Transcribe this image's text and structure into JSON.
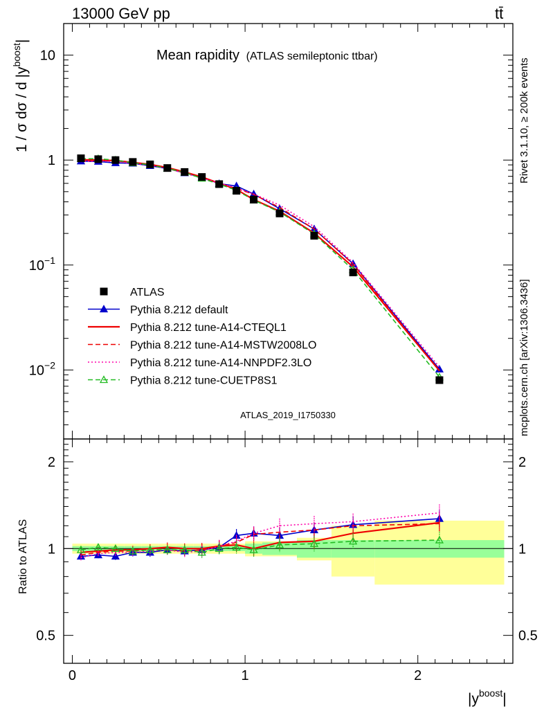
{
  "header": {
    "energy_label": "13000 GeV pp",
    "process_label": "tt̄"
  },
  "side_labels": {
    "rivet": "Rivet 3.1.10, ≥ 200k events",
    "mcplots": "mcplots.cern.ch [arXiv:1306.3436]"
  },
  "chart_data": {
    "type": "line",
    "title": "Mean rapidity",
    "subtitle": "(ATLAS semileptonic ttbar)",
    "analysis_id": "ATLAS_2019_I1750330",
    "xlabel": "|y",
    "xlabel_sup": "boost",
    "xlabel_end": "|",
    "ylabel": "1 / σ dσ / d |y",
    "ylabel_sup": "boost",
    "ylabel_end": "|",
    "ratio_ylabel": "Ratio to ATLAS",
    "xlim": [
      -0.05,
      2.55
    ],
    "ylim": [
      0.0022,
      20
    ],
    "ratio_ylim": [
      0.4,
      2.4
    ],
    "x_ticks": [
      {
        "value": 0,
        "label": "0"
      },
      {
        "value": 1,
        "label": "1"
      },
      {
        "value": 2,
        "label": "2"
      }
    ],
    "y_ticks": [
      {
        "value": 0.01,
        "base": "10",
        "exp": "−2"
      },
      {
        "value": 0.1,
        "base": "10",
        "exp": "−1"
      },
      {
        "value": 1,
        "base": "1",
        "exp": ""
      },
      {
        "value": 10,
        "base": "10",
        "exp": ""
      }
    ],
    "ratio_ticks": [
      {
        "value": 0.5,
        "label": "0.5"
      },
      {
        "value": 1,
        "label": "1"
      },
      {
        "value": 2,
        "label": "2"
      }
    ],
    "bins": [
      [
        0,
        0.1
      ],
      [
        0.1,
        0.2
      ],
      [
        0.2,
        0.3
      ],
      [
        0.3,
        0.4
      ],
      [
        0.4,
        0.5
      ],
      [
        0.5,
        0.6
      ],
      [
        0.6,
        0.7
      ],
      [
        0.7,
        0.8
      ],
      [
        0.8,
        0.9
      ],
      [
        0.9,
        1.0
      ],
      [
        1.0,
        1.1
      ],
      [
        1.1,
        1.3
      ],
      [
        1.3,
        1.5
      ],
      [
        1.5,
        1.75
      ],
      [
        1.75,
        2.5
      ]
    ],
    "x": [
      0.05,
      0.15,
      0.25,
      0.35,
      0.45,
      0.55,
      0.65,
      0.75,
      0.85,
      0.95,
      1.05,
      1.2,
      1.4,
      1.625,
      2.125
    ],
    "data_values": [
      1.04,
      1.02,
      1.0,
      0.96,
      0.91,
      0.84,
      0.77,
      0.69,
      0.59,
      0.51,
      0.42,
      0.31,
      0.19,
      0.085,
      0.008
    ],
    "uncertainty_bands": {
      "stat": [
        0.02,
        0.02,
        0.02,
        0.02,
        0.02,
        0.02,
        0.02,
        0.02,
        0.02,
        0.02,
        0.04,
        0.05,
        0.07,
        0.07,
        0.07
      ],
      "total": [
        0.04,
        0.04,
        0.04,
        0.04,
        0.04,
        0.04,
        0.04,
        0.04,
        0.04,
        0.04,
        0.06,
        0.06,
        0.09,
        0.2,
        0.25
      ]
    },
    "series": [
      {
        "name": "ATLAS",
        "color": "#000000",
        "style": "points-square"
      },
      {
        "name": "Pythia 8.212 default",
        "color": "#0000cc",
        "style": "solid",
        "marker": "triangle-filled",
        "ratio": [
          0.94,
          0.95,
          0.94,
          0.97,
          0.97,
          0.99,
          0.98,
          0.99,
          1.01,
          1.11,
          1.13,
          1.11,
          1.16,
          1.21,
          1.27
        ]
      },
      {
        "name": "Pythia 8.212 tune-A14-CTEQL1",
        "color": "#ee0000",
        "style": "solid",
        "ratio": [
          0.97,
          0.98,
          0.99,
          0.99,
          1.0,
          1.01,
          1.0,
          1.0,
          1.02,
          1.03,
          1.0,
          1.05,
          1.06,
          1.13,
          1.23
        ]
      },
      {
        "name": "Pythia 8.212 tune-A14-MSTW2008LO",
        "color": "#ee0000",
        "style": "dashed",
        "ratio": [
          0.95,
          0.97,
          0.98,
          0.98,
          0.99,
          0.99,
          0.98,
          0.99,
          1.02,
          1.05,
          1.12,
          1.14,
          1.16,
          1.2,
          1.22
        ]
      },
      {
        "name": "Pythia 8.212 tune-A14-NNPDF2.3LO",
        "color": "#ff00aa",
        "style": "dotted",
        "ratio": [
          0.93,
          0.96,
          0.97,
          0.97,
          0.98,
          0.99,
          0.97,
          0.98,
          1.02,
          1.06,
          1.13,
          1.2,
          1.22,
          1.24,
          1.33
        ]
      },
      {
        "name": "Pythia 8.212 tune-CUETP8S1",
        "color": "#22bb22",
        "style": "dashed",
        "marker": "triangle-open",
        "ratio": [
          0.99,
          1.01,
          1.0,
          0.98,
          0.99,
          0.99,
          0.99,
          0.97,
          1.0,
          1.01,
          0.99,
          1.03,
          1.04,
          1.06,
          1.07
        ]
      }
    ]
  }
}
